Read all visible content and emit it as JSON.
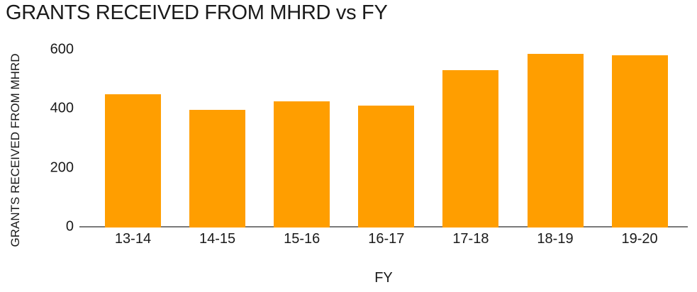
{
  "chart_data": {
    "type": "bar",
    "title": "GRANTS RECEIVED FROM MHRD vs FY",
    "xlabel": "FY",
    "ylabel": "GRANTS RECEIVED FROM MHRD",
    "categories": [
      "13-14",
      "14-15",
      "15-16",
      "16-17",
      "17-18",
      "18-19",
      "19-20"
    ],
    "values": [
      450,
      395,
      425,
      410,
      530,
      585,
      580
    ],
    "ylim": [
      0,
      600
    ],
    "yticks": [
      0,
      200,
      400,
      600
    ],
    "grid": false,
    "legend": "none",
    "bar_color": "#FF9E00"
  },
  "colors": {
    "bar": "#FF9E00",
    "text": "#1a1a1a",
    "axis": "#7a7a7a",
    "background": "#ffffff"
  }
}
